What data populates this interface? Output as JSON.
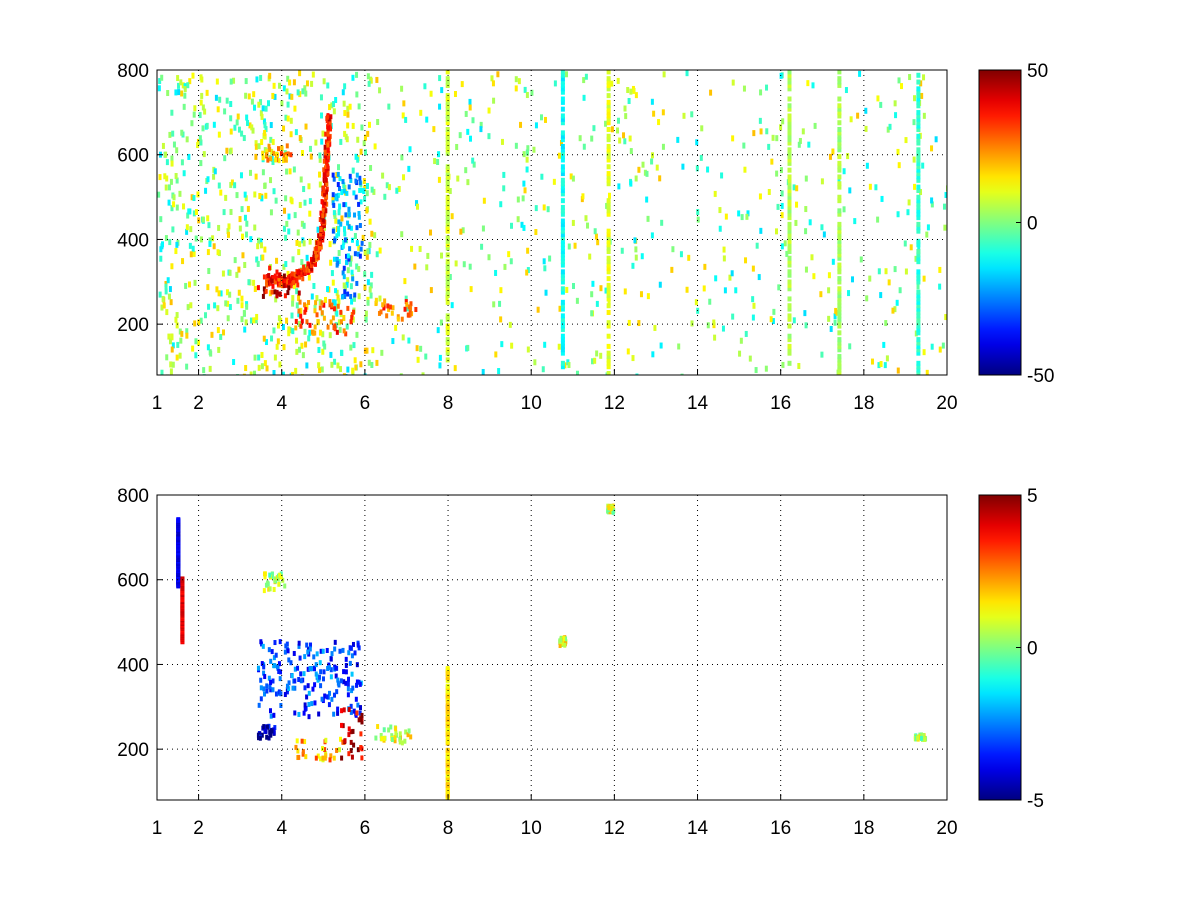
{
  "chart_data": [
    {
      "type": "heatmap",
      "title": "",
      "xlabel": "",
      "ylabel": "",
      "xlim": [
        1,
        20
      ],
      "ylim": [
        80,
        800
      ],
      "grid": true,
      "x_ticks": [
        1,
        2,
        4,
        6,
        8,
        10,
        12,
        14,
        16,
        18,
        20
      ],
      "y_ticks": [
        200,
        400,
        600,
        800
      ],
      "colormap": "jet",
      "colorbar": {
        "range": [
          -50,
          50
        ],
        "ticks": [
          50,
          0,
          -50
        ]
      },
      "features": [
        {
          "kind": "curve",
          "points": [
            [
              3.6,
              310
            ],
            [
              4.0,
              305
            ],
            [
              4.4,
              320
            ],
            [
              4.7,
              345
            ],
            [
              4.9,
              400
            ],
            [
              5.0,
              500
            ],
            [
              5.05,
              600
            ],
            [
              5.1,
              700
            ]
          ],
          "value": 35,
          "width": 18
        },
        {
          "kind": "blob",
          "x": [
            3.3,
            4.4
          ],
          "y": [
            270,
            340
          ],
          "value": 40
        },
        {
          "kind": "blob",
          "x": [
            3.5,
            4.2
          ],
          "y": [
            590,
            630
          ],
          "value": 22
        },
        {
          "kind": "blob",
          "x": [
            4.3,
            5.7
          ],
          "y": [
            180,
            260
          ],
          "value": 30
        },
        {
          "kind": "blob",
          "x": [
            5.2,
            5.9
          ],
          "y": [
            270,
            560
          ],
          "value": -22
        },
        {
          "kind": "blob",
          "x": [
            6.2,
            7.2
          ],
          "y": [
            215,
            265
          ],
          "value": 25
        },
        {
          "kind": "stripe",
          "x": 7.98,
          "y": [
            80,
            800
          ],
          "value": 8
        },
        {
          "kind": "stripe",
          "x": 11.85,
          "y": [
            80,
            800
          ],
          "value": 10
        },
        {
          "kind": "stripe",
          "x": 10.75,
          "y": [
            80,
            800
          ],
          "value": -12
        },
        {
          "kind": "stripe",
          "x": 16.2,
          "y": [
            80,
            800
          ],
          "value": 5
        },
        {
          "kind": "stripe",
          "x": 17.4,
          "y": [
            80,
            800
          ],
          "value": 4
        },
        {
          "kind": "stripe",
          "x": 19.3,
          "y": [
            80,
            800
          ],
          "value": -8
        }
      ]
    },
    {
      "type": "heatmap",
      "title": "",
      "xlabel": "",
      "ylabel": "",
      "xlim": [
        1,
        20
      ],
      "ylim": [
        80,
        800
      ],
      "grid": true,
      "x_ticks": [
        1,
        2,
        4,
        6,
        8,
        10,
        12,
        14,
        16,
        18,
        20
      ],
      "y_ticks": [
        200,
        400,
        600,
        800
      ],
      "colormap": "jet",
      "colorbar": {
        "range": [
          -5,
          5
        ],
        "ticks": [
          5,
          0,
          -5
        ]
      },
      "features": [
        {
          "kind": "blob",
          "x": [
            3.4,
            5.9
          ],
          "y": [
            280,
            460
          ],
          "value": -3
        },
        {
          "kind": "blob",
          "x": [
            4.3,
            5.6
          ],
          "y": [
            180,
            230
          ],
          "value": 2
        },
        {
          "kind": "blob",
          "x": [
            5.4,
            5.9
          ],
          "y": [
            180,
            300
          ],
          "value": 4.5
        },
        {
          "kind": "blob",
          "x": [
            3.4,
            3.8
          ],
          "y": [
            230,
            260
          ],
          "value": -4.5
        },
        {
          "kind": "blob",
          "x": [
            3.5,
            4.1
          ],
          "y": [
            580,
            620
          ],
          "value": 0.5
        },
        {
          "kind": "blob",
          "x": [
            6.2,
            7.1
          ],
          "y": [
            220,
            260
          ],
          "value": 0.8
        },
        {
          "kind": "stripe",
          "x": 7.98,
          "y": [
            80,
            390
          ],
          "value": 1.5
        },
        {
          "kind": "stripe",
          "x": 1.5,
          "y": [
            580,
            740
          ],
          "value": -4
        },
        {
          "kind": "stripe",
          "x": 1.6,
          "y": [
            450,
            600
          ],
          "value": 4
        },
        {
          "kind": "blob",
          "x": [
            10.65,
            10.8
          ],
          "y": [
            450,
            470
          ],
          "value": 1
        },
        {
          "kind": "blob",
          "x": [
            11.8,
            11.95
          ],
          "y": [
            765,
            780
          ],
          "value": 0.8
        },
        {
          "kind": "blob",
          "x": [
            19.2,
            19.45
          ],
          "y": [
            228,
            240
          ],
          "value": 0.5
        }
      ]
    }
  ]
}
